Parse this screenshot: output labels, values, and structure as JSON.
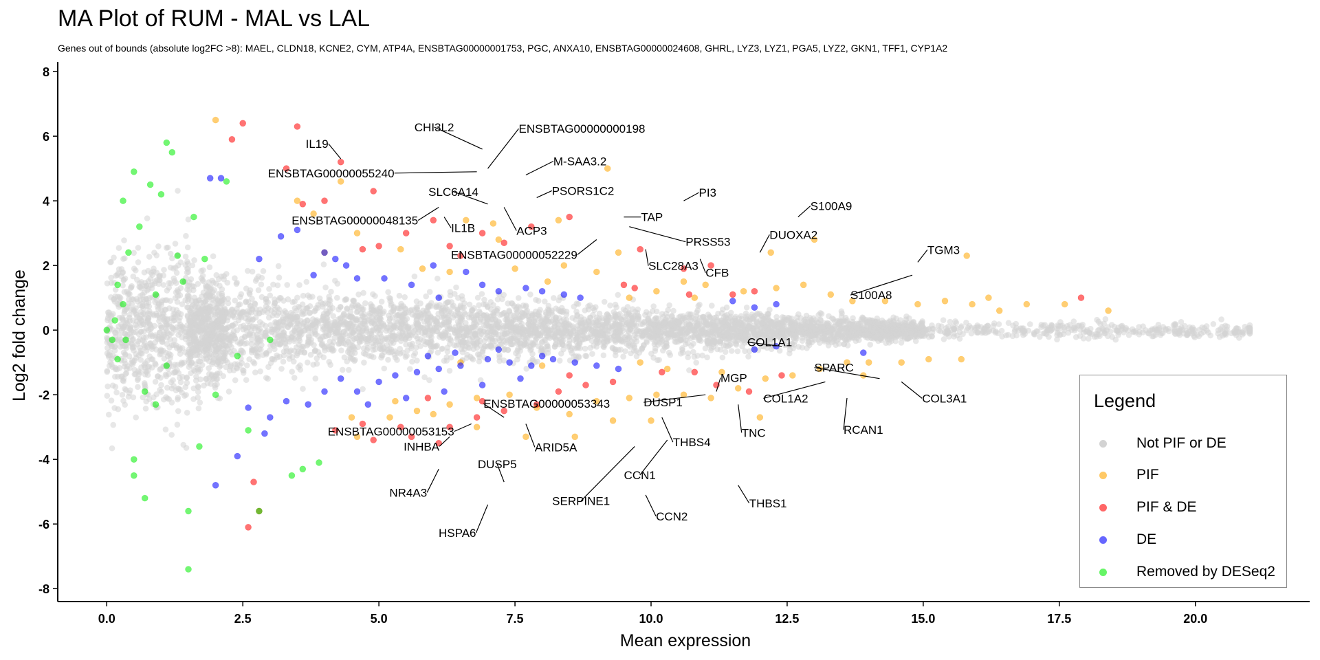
{
  "chart_data": {
    "type": "scatter",
    "title": "MA Plot of RUM - MAL vs LAL",
    "subtitle": "Genes out of bounds (absolute log2FC >8):  MAEL, CLDN18, KCNE2, CYM, ATP4A, ENSBTAG00000001753, PGC, ANXA10, ENSBTAG00000024608, GHRL, LYZ3, LYZ1, PGA5, LYZ2, GKN1, TFF1, CYP1A2",
    "xlabel": "Mean expression",
    "ylabel": "Log2 fold change",
    "xlim": [
      -0.9,
      22.1
    ],
    "ylim": [
      -8.4,
      8.3
    ],
    "x_ticks": [
      "0.0",
      "2.5",
      "5.0",
      "7.5",
      "10.0",
      "12.5",
      "15.0",
      "17.5",
      "20.0"
    ],
    "y_ticks": [
      "-8",
      "-6",
      "-4",
      "-2",
      "0",
      "2",
      "4",
      "6",
      "8"
    ],
    "grid": false,
    "legend": {
      "title": "Legend",
      "position": "right",
      "entries": [
        {
          "key": "none",
          "label": "Not PIF or DE",
          "color": "#d3d3d3"
        },
        {
          "key": "pif",
          "label": "PIF",
          "color": "#ffa500"
        },
        {
          "key": "pifde",
          "label": "PIF & DE",
          "color": "#ff0000"
        },
        {
          "key": "de",
          "label": "DE",
          "color": "#0000ff"
        },
        {
          "key": "removed",
          "label": "Removed by DESeq2",
          "color": "#00ee00"
        }
      ]
    },
    "series": [
      {
        "name": "PIF",
        "key": "pif",
        "points": [
          [
            2.0,
            6.5
          ],
          [
            9.2,
            5.0
          ],
          [
            7.2,
            2.8
          ],
          [
            5.4,
            2.5
          ],
          [
            5.8,
            1.9
          ],
          [
            6.3,
            1.8
          ],
          [
            7.5,
            1.9
          ],
          [
            8.4,
            2.0
          ],
          [
            9.0,
            1.8
          ],
          [
            9.4,
            2.4
          ],
          [
            10.1,
            1.2
          ],
          [
            10.6,
            1.5
          ],
          [
            11.0,
            1.4
          ],
          [
            11.7,
            1.2
          ],
          [
            12.3,
            1.3
          ],
          [
            12.8,
            1.4
          ],
          [
            13.3,
            1.1
          ],
          [
            13.7,
            0.9
          ],
          [
            14.3,
            0.9
          ],
          [
            14.9,
            0.8
          ],
          [
            15.4,
            0.9
          ],
          [
            15.9,
            0.8
          ],
          [
            16.4,
            0.6
          ],
          [
            16.9,
            0.8
          ],
          [
            17.6,
            0.8
          ],
          [
            18.4,
            0.6
          ],
          [
            15.8,
            2.3
          ],
          [
            16.2,
            1.0
          ],
          [
            13.0,
            2.8
          ],
          [
            12.2,
            2.4
          ],
          [
            8.3,
            3.4
          ],
          [
            7.1,
            3.3
          ],
          [
            6.6,
            3.4
          ],
          [
            4.6,
            3.0
          ],
          [
            4.0,
            2.4
          ],
          [
            3.8,
            3.6
          ],
          [
            3.5,
            4.0
          ],
          [
            4.3,
            4.6
          ],
          [
            4.6,
            -3.3
          ],
          [
            5.2,
            -2.7
          ],
          [
            5.7,
            -2.5
          ],
          [
            6.3,
            -2.3
          ],
          [
            6.8,
            -2.1
          ],
          [
            7.4,
            -2.0
          ],
          [
            7.9,
            -2.4
          ],
          [
            8.5,
            -2.6
          ],
          [
            9.0,
            -2.2
          ],
          [
            9.6,
            -2.1
          ],
          [
            10.1,
            -2.0
          ],
          [
            10.6,
            -2.0
          ],
          [
            11.1,
            -2.1
          ],
          [
            11.6,
            -1.8
          ],
          [
            12.1,
            -1.5
          ],
          [
            12.6,
            -1.4
          ],
          [
            13.1,
            -1.2
          ],
          [
            13.6,
            -1.0
          ],
          [
            14.0,
            -1.0
          ],
          [
            14.6,
            -1.0
          ],
          [
            15.1,
            -0.9
          ],
          [
            15.7,
            -0.9
          ],
          [
            13.9,
            -1.4
          ],
          [
            12.0,
            -2.7
          ],
          [
            10.0,
            -2.8
          ],
          [
            9.3,
            -2.8
          ],
          [
            8.6,
            -3.3
          ],
          [
            7.7,
            -3.3
          ],
          [
            6.8,
            -3.0
          ],
          [
            6.0,
            -2.6
          ],
          [
            5.3,
            -2.2
          ],
          [
            4.5,
            -2.7
          ],
          [
            10.3,
            -1.2
          ],
          [
            11.3,
            -1.3
          ],
          [
            8.0,
            -1.1
          ],
          [
            6.5,
            -1.0
          ],
          [
            9.8,
            -1.0
          ],
          [
            10.8,
            1.0
          ],
          [
            9.6,
            1.0
          ],
          [
            8.1,
            1.5
          ]
        ]
      },
      {
        "name": "PIF & DE",
        "key": "pifde",
        "points": [
          [
            2.5,
            6.4
          ],
          [
            2.3,
            5.9
          ],
          [
            3.5,
            6.3
          ],
          [
            4.3,
            5.2
          ],
          [
            3.3,
            5.0
          ],
          [
            4.9,
            4.3
          ],
          [
            3.6,
            3.9
          ],
          [
            4.0,
            4.0
          ],
          [
            5.0,
            2.6
          ],
          [
            4.7,
            2.5
          ],
          [
            5.5,
            3.0
          ],
          [
            6.0,
            3.4
          ],
          [
            6.9,
            3.0
          ],
          [
            7.8,
            3.2
          ],
          [
            8.5,
            3.5
          ],
          [
            9.8,
            2.5
          ],
          [
            10.6,
            1.9
          ],
          [
            11.1,
            2.0
          ],
          [
            11.5,
            1.1
          ],
          [
            11.9,
            1.2
          ],
          [
            17.9,
            1.0
          ],
          [
            9.5,
            1.4
          ],
          [
            9.7,
            1.3
          ],
          [
            10.7,
            1.1
          ],
          [
            6.3,
            2.6
          ],
          [
            7.3,
            2.7
          ],
          [
            6.5,
            2.3
          ],
          [
            4.2,
            -3.1
          ],
          [
            4.9,
            -3.4
          ],
          [
            5.4,
            -3.0
          ],
          [
            6.3,
            -3.0
          ],
          [
            6.8,
            -2.7
          ],
          [
            7.3,
            -2.5
          ],
          [
            7.9,
            -2.3
          ],
          [
            8.3,
            -1.9
          ],
          [
            8.8,
            -1.7
          ],
          [
            9.3,
            -1.6
          ],
          [
            10.2,
            -1.3
          ],
          [
            10.8,
            -1.3
          ],
          [
            11.2,
            -1.7
          ],
          [
            11.8,
            -1.9
          ],
          [
            12.4,
            -1.4
          ],
          [
            8.5,
            -1.4
          ],
          [
            6.9,
            -2.2
          ],
          [
            5.9,
            -2.1
          ],
          [
            4.7,
            -2.9
          ],
          [
            2.8,
            -5.6
          ],
          [
            2.7,
            -4.7
          ],
          [
            2.6,
            -6.1
          ],
          [
            5.6,
            -3.3
          ],
          [
            6.1,
            -3.5
          ]
        ]
      },
      {
        "name": "DE",
        "key": "de",
        "points": [
          [
            1.9,
            4.7
          ],
          [
            2.1,
            4.7
          ],
          [
            2.8,
            2.2
          ],
          [
            3.2,
            2.9
          ],
          [
            3.5,
            3.1
          ],
          [
            4.0,
            2.4
          ],
          [
            4.2,
            2.2
          ],
          [
            4.4,
            2.0
          ],
          [
            4.6,
            1.6
          ],
          [
            5.1,
            1.6
          ],
          [
            6.0,
            2.0
          ],
          [
            6.6,
            1.8
          ],
          [
            6.9,
            1.4
          ],
          [
            7.2,
            1.2
          ],
          [
            7.7,
            1.3
          ],
          [
            8.0,
            1.2
          ],
          [
            8.4,
            1.1
          ],
          [
            8.7,
            1.0
          ],
          [
            11.5,
            0.9
          ],
          [
            11.9,
            0.7
          ],
          [
            12.3,
            0.8
          ],
          [
            5.6,
            1.4
          ],
          [
            6.1,
            1.0
          ],
          [
            3.8,
            1.7
          ],
          [
            2.0,
            -4.8
          ],
          [
            2.4,
            -3.9
          ],
          [
            2.9,
            -3.2
          ],
          [
            2.6,
            -2.4
          ],
          [
            3.0,
            -2.7
          ],
          [
            3.3,
            -2.2
          ],
          [
            3.7,
            -2.3
          ],
          [
            4.0,
            -1.9
          ],
          [
            4.3,
            -1.5
          ],
          [
            4.6,
            -1.9
          ],
          [
            5.0,
            -1.6
          ],
          [
            5.3,
            -1.4
          ],
          [
            5.7,
            -1.3
          ],
          [
            6.1,
            -1.2
          ],
          [
            6.5,
            -1.1
          ],
          [
            7.0,
            -0.9
          ],
          [
            7.4,
            -1.0
          ],
          [
            7.8,
            -1.1
          ],
          [
            8.2,
            -0.9
          ],
          [
            8.6,
            -1.0
          ],
          [
            9.0,
            -1.1
          ],
          [
            9.4,
            -1.2
          ],
          [
            6.2,
            -1.9
          ],
          [
            6.9,
            -1.7
          ],
          [
            7.6,
            -1.5
          ],
          [
            5.5,
            -2.1
          ],
          [
            4.8,
            -2.3
          ],
          [
            12.3,
            -0.5
          ],
          [
            11.9,
            -0.6
          ],
          [
            13.9,
            -0.7
          ],
          [
            5.9,
            -0.8
          ],
          [
            6.4,
            -0.7
          ],
          [
            7.2,
            -0.6
          ],
          [
            8.0,
            -0.8
          ]
        ]
      },
      {
        "name": "Removed by DESeq2",
        "key": "removed",
        "points": [
          [
            0.0,
            0.0
          ],
          [
            0.1,
            -0.3
          ],
          [
            0.15,
            0.3
          ],
          [
            0.2,
            1.4
          ],
          [
            0.3,
            0.8
          ],
          [
            0.2,
            -0.9
          ],
          [
            0.35,
            -0.3
          ],
          [
            0.4,
            2.4
          ],
          [
            0.5,
            4.9
          ],
          [
            0.5,
            -4.0
          ],
          [
            0.5,
            -4.5
          ],
          [
            0.6,
            3.2
          ],
          [
            0.7,
            -1.9
          ],
          [
            0.8,
            4.5
          ],
          [
            0.9,
            -2.3
          ],
          [
            1.0,
            4.2
          ],
          [
            1.1,
            5.8
          ],
          [
            1.2,
            5.5
          ],
          [
            1.1,
            -1.1
          ],
          [
            1.3,
            2.3
          ],
          [
            1.4,
            1.5
          ],
          [
            1.5,
            -5.6
          ],
          [
            1.6,
            3.5
          ],
          [
            1.7,
            -3.6
          ],
          [
            1.8,
            2.2
          ],
          [
            2.0,
            -2.0
          ],
          [
            2.2,
            4.6
          ],
          [
            2.4,
            -0.8
          ],
          [
            2.6,
            -3.1
          ],
          [
            2.8,
            -5.6
          ],
          [
            3.0,
            -0.3
          ],
          [
            3.4,
            -4.5
          ],
          [
            3.6,
            -4.3
          ],
          [
            3.9,
            -4.1
          ],
          [
            1.5,
            -7.4
          ],
          [
            0.7,
            -5.2
          ],
          [
            0.3,
            4.0
          ],
          [
            0.9,
            1.1
          ]
        ]
      }
    ],
    "annotations": [
      {
        "text": "CHI3L2",
        "x": 6.9,
        "y": 5.6
      },
      {
        "text": "ENSBTAG00000000198",
        "x": 7.0,
        "y": 5.0
      },
      {
        "text": "IL19",
        "x": 4.3,
        "y": 5.3
      },
      {
        "text": "M-SAA3.2",
        "x": 7.7,
        "y": 4.8
      },
      {
        "text": "ENSBTAG00000055240",
        "x": 6.8,
        "y": 4.9
      },
      {
        "text": "SLC6A14",
        "x": 7.0,
        "y": 3.9
      },
      {
        "text": "PSORS1C2",
        "x": 7.9,
        "y": 4.1
      },
      {
        "text": "PI3",
        "x": 10.6,
        "y": 4.0
      },
      {
        "text": "S100A9",
        "x": 12.7,
        "y": 3.5
      },
      {
        "text": "ENSBTAG00000048135",
        "x": 6.1,
        "y": 3.8
      },
      {
        "text": "IL1B",
        "x": 6.2,
        "y": 3.5
      },
      {
        "text": "ACP3",
        "x": 7.3,
        "y": 3.8
      },
      {
        "text": "TAP",
        "x": 9.5,
        "y": 3.5
      },
      {
        "text": "PRSS53",
        "x": 9.6,
        "y": 3.2
      },
      {
        "text": "DUOXA2",
        "x": 12.0,
        "y": 2.4
      },
      {
        "text": "TGM3",
        "x": 14.9,
        "y": 2.1
      },
      {
        "text": "ENSBTAG00000052229",
        "x": 9.0,
        "y": 2.8
      },
      {
        "text": "SLC28A3",
        "x": 9.9,
        "y": 2.5
      },
      {
        "text": "CFB",
        "x": 10.9,
        "y": 2.2
      },
      {
        "text": "S100A8",
        "x": 14.8,
        "y": 1.7
      },
      {
        "text": "COL1A1",
        "x": 12.4,
        "y": -0.5
      },
      {
        "text": "SPARC",
        "x": 14.2,
        "y": -1.5
      },
      {
        "text": "MGP",
        "x": 11.2,
        "y": -1.9
      },
      {
        "text": "COL1A2",
        "x": 13.2,
        "y": -1.6
      },
      {
        "text": "COL3A1",
        "x": 14.6,
        "y": -1.6
      },
      {
        "text": "DUSP1",
        "x": 11.0,
        "y": -2.0
      },
      {
        "text": "TNC",
        "x": 11.6,
        "y": -2.3
      },
      {
        "text": "RCAN1",
        "x": 13.6,
        "y": -2.1
      },
      {
        "text": "ENSBTAG00000053153",
        "x": 6.7,
        "y": -2.9
      },
      {
        "text": "ENSBTAG00000053343",
        "x": 7.3,
        "y": -2.7
      },
      {
        "text": "INHBA",
        "x": 6.3,
        "y": -3.3
      },
      {
        "text": "ARID5A",
        "x": 7.7,
        "y": -2.9
      },
      {
        "text": "THBS4",
        "x": 10.2,
        "y": -2.7
      },
      {
        "text": "CCN1",
        "x": 10.3,
        "y": -3.4
      },
      {
        "text": "SERPINE1",
        "x": 9.7,
        "y": -3.6
      },
      {
        "text": "NR4A3",
        "x": 6.1,
        "y": -4.3
      },
      {
        "text": "DUSP5",
        "x": 7.3,
        "y": -4.7
      },
      {
        "text": "THBS1",
        "x": 11.6,
        "y": -4.8
      },
      {
        "text": "CCN2",
        "x": 9.9,
        "y": -5.1
      },
      {
        "text": "HSPA6",
        "x": 7.0,
        "y": -5.4
      }
    ]
  }
}
